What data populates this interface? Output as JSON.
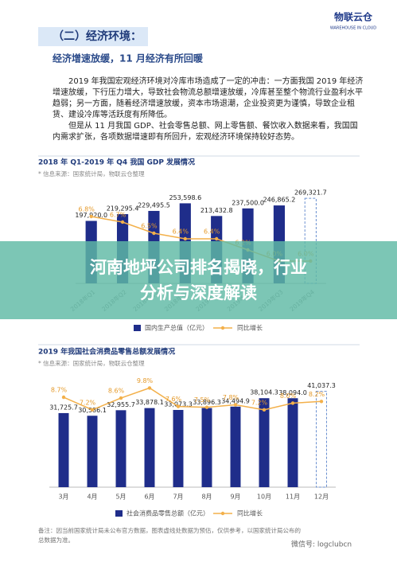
{
  "header": {
    "section": "（二）经济环境：",
    "logo": "物联云仓",
    "logo_sub": "WAREHOUSE IN CLOUD"
  },
  "subheading": "经济增速放缓，11 月经济有所回暖",
  "paragraphs": [
    "2019 年我国宏观经济环境对冷库市场造成了一定的冲击：一方面我国 2019 年经济增速放缓，下行压力增大，导致社会物流总额增速放缓，冷库甚至整个物流行业盈利水平趋弱；另一方面，随着经济增速放缓，资本市场退潮，企业投资更为谨慎，导致企业租赁、建设冷库等活跃度有所降低。",
    "但是从 11 月我国 GDP、社会零售总额、网上零售额、餐饮收入数据来看，我国国内需求扩张，各项数据增速即有所回升，宏观经济环境保持较好态势。"
  ],
  "chart_data": [
    {
      "type": "bar",
      "title": "2018 年 Q1-2019 年 Q4 我国 GDP 发展情况",
      "source": "* 信息来源：国家统计局，物联云仓整理",
      "categories": [
        "2018年Q1",
        "2018年Q2",
        "2018年Q3",
        "2018年Q4",
        "2019年Q1",
        "2019年Q2",
        "2019年Q3",
        "2019年Q4"
      ],
      "series": [
        {
          "name": "国内生产总值（亿元）",
          "color": "#1f2d8a",
          "values": [
            197920.0,
            219295.4,
            229495.5,
            253598.6,
            213432.8,
            237500.0,
            246865.2,
            269321.7
          ],
          "value_labels": [
            "197,920.0",
            "219,295.4",
            "229,495.5",
            "253,598.6",
            "213,432.8",
            "237,500.0",
            "246,865.2",
            "269,321.7"
          ]
        },
        {
          "name": "同比增长",
          "color": "#f3b04a",
          "type": "line",
          "axis": "y2",
          "values": [
            6.8,
            6.7,
            6.5,
            6.4,
            6.4,
            6.2,
            6.0,
            6.0
          ],
          "value_labels": [
            "6.8%",
            "6.7%",
            "6.5%",
            "6.4%",
            "6.4%",
            "6.2%",
            "6.0%",
            "6.0%"
          ]
        }
      ],
      "ylim": [
        0,
        300000
      ],
      "y2lim": [
        5.6,
        7.3
      ],
      "dashed_last": true,
      "rotated_labels": true
    },
    {
      "type": "bar",
      "title": "2019 年我国社会消费品零售总额发展情况",
      "source": "* 信息来源：国家统计局，物联云仓整理",
      "categories": [
        "3月",
        "4月",
        "5月",
        "6月",
        "7月",
        "8月",
        "9月",
        "10月",
        "11月",
        "12月"
      ],
      "series": [
        {
          "name": "社会消费品零售总额（亿元）",
          "color": "#1f2d8a",
          "values": [
            31725.7,
            30586.1,
            32955.7,
            33878.1,
            33073.3,
            33896.3,
            34494.9,
            38104.3,
            38094.0,
            41037.3
          ],
          "value_labels": [
            "31,725.7",
            "30,586.1",
            "32,955.7",
            "33,878.1",
            "33,073.3",
            "33,896.3",
            "34,494.9",
            "38,104.3",
            "38,094.0",
            "41,037.3"
          ]
        },
        {
          "name": "同比增长",
          "color": "#f3b04a",
          "type": "line",
          "axis": "y2",
          "values": [
            8.7,
            7.2,
            8.6,
            9.8,
            7.6,
            7.5,
            7.8,
            7.2,
            8.0,
            8.2
          ],
          "value_labels": [
            "8.7%",
            "7.2%",
            "8.6%",
            "9.8%",
            "7.6%",
            "7.5%",
            "7.8%",
            "7.2%",
            "8.0%",
            "8.2%"
          ]
        }
      ],
      "ylim": [
        0,
        45000
      ],
      "y2lim": [
        -2,
        10.5
      ],
      "dashed_last": true,
      "rotated_labels": false
    }
  ],
  "overlay": {
    "title_lines": [
      "河南地坪公司排名揭晓，行业",
      "分析与深度解读"
    ]
  },
  "footer": {
    "note_lines": [
      "备注：因当前国家统计局未公布官方数据，图表虚线处数据为预估，仅供参考，以国家统计局公布的",
      "总数据为准。"
    ],
    "watermark": "微信号: logclubcn"
  }
}
